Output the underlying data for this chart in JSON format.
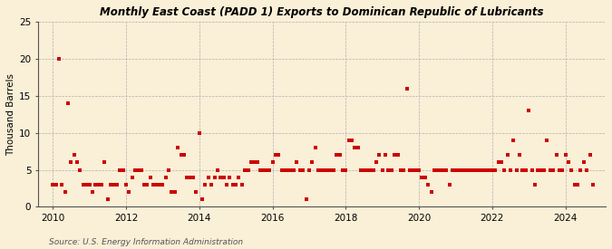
{
  "title": "Monthly East Coast (PADD 1) Exports to Dominican Republic of Lubricants",
  "ylabel": "Thousand Barrels",
  "source": "Source: U.S. Energy Information Administration",
  "background_color": "#faefd7",
  "plot_bg_color": "#faefd7",
  "marker_color": "#cc0000",
  "marker_size": 3.5,
  "ylim": [
    0,
    25
  ],
  "yticks": [
    0,
    5,
    10,
    15,
    20,
    25
  ],
  "xlim_start": 2009.6,
  "xlim_end": 2025.1,
  "xticks": [
    2010,
    2012,
    2014,
    2016,
    2018,
    2020,
    2022,
    2024
  ],
  "data": [
    [
      2010.0,
      3
    ],
    [
      2010.083,
      3
    ],
    [
      2010.167,
      20
    ],
    [
      2010.25,
      3
    ],
    [
      2010.333,
      2
    ],
    [
      2010.417,
      14
    ],
    [
      2010.5,
      6
    ],
    [
      2010.583,
      7
    ],
    [
      2010.667,
      6
    ],
    [
      2010.75,
      5
    ],
    [
      2010.833,
      3
    ],
    [
      2010.917,
      3
    ],
    [
      2011.0,
      3
    ],
    [
      2011.083,
      2
    ],
    [
      2011.167,
      3
    ],
    [
      2011.25,
      3
    ],
    [
      2011.333,
      3
    ],
    [
      2011.417,
      6
    ],
    [
      2011.5,
      1
    ],
    [
      2011.583,
      3
    ],
    [
      2011.667,
      3
    ],
    [
      2011.75,
      3
    ],
    [
      2011.833,
      5
    ],
    [
      2011.917,
      5
    ],
    [
      2012.0,
      3
    ],
    [
      2012.083,
      2
    ],
    [
      2012.167,
      4
    ],
    [
      2012.25,
      5
    ],
    [
      2012.333,
      5
    ],
    [
      2012.417,
      5
    ],
    [
      2012.5,
      3
    ],
    [
      2012.583,
      3
    ],
    [
      2012.667,
      4
    ],
    [
      2012.75,
      3
    ],
    [
      2012.833,
      3
    ],
    [
      2012.917,
      3
    ],
    [
      2013.0,
      3
    ],
    [
      2013.083,
      4
    ],
    [
      2013.167,
      5
    ],
    [
      2013.25,
      2
    ],
    [
      2013.333,
      2
    ],
    [
      2013.417,
      8
    ],
    [
      2013.5,
      7
    ],
    [
      2013.583,
      7
    ],
    [
      2013.667,
      4
    ],
    [
      2013.75,
      4
    ],
    [
      2013.833,
      4
    ],
    [
      2013.917,
      2
    ],
    [
      2014.0,
      10
    ],
    [
      2014.083,
      1
    ],
    [
      2014.167,
      3
    ],
    [
      2014.25,
      4
    ],
    [
      2014.333,
      3
    ],
    [
      2014.417,
      4
    ],
    [
      2014.5,
      5
    ],
    [
      2014.583,
      4
    ],
    [
      2014.667,
      4
    ],
    [
      2014.75,
      3
    ],
    [
      2014.833,
      4
    ],
    [
      2014.917,
      3
    ],
    [
      2015.0,
      3
    ],
    [
      2015.083,
      4
    ],
    [
      2015.167,
      3
    ],
    [
      2015.25,
      5
    ],
    [
      2015.333,
      5
    ],
    [
      2015.417,
      6
    ],
    [
      2015.5,
      6
    ],
    [
      2015.583,
      6
    ],
    [
      2015.667,
      5
    ],
    [
      2015.75,
      5
    ],
    [
      2015.833,
      5
    ],
    [
      2015.917,
      5
    ],
    [
      2016.0,
      6
    ],
    [
      2016.083,
      7
    ],
    [
      2016.167,
      7
    ],
    [
      2016.25,
      5
    ],
    [
      2016.333,
      5
    ],
    [
      2016.417,
      5
    ],
    [
      2016.5,
      5
    ],
    [
      2016.583,
      5
    ],
    [
      2016.667,
      6
    ],
    [
      2016.75,
      5
    ],
    [
      2016.833,
      5
    ],
    [
      2016.917,
      1
    ],
    [
      2017.0,
      5
    ],
    [
      2017.083,
      6
    ],
    [
      2017.167,
      8
    ],
    [
      2017.25,
      5
    ],
    [
      2017.333,
      5
    ],
    [
      2017.417,
      5
    ],
    [
      2017.5,
      5
    ],
    [
      2017.583,
      5
    ],
    [
      2017.667,
      5
    ],
    [
      2017.75,
      7
    ],
    [
      2017.833,
      7
    ],
    [
      2017.917,
      5
    ],
    [
      2018.0,
      5
    ],
    [
      2018.083,
      9
    ],
    [
      2018.167,
      9
    ],
    [
      2018.25,
      8
    ],
    [
      2018.333,
      8
    ],
    [
      2018.417,
      5
    ],
    [
      2018.5,
      5
    ],
    [
      2018.583,
      5
    ],
    [
      2018.667,
      5
    ],
    [
      2018.75,
      5
    ],
    [
      2018.833,
      6
    ],
    [
      2018.917,
      7
    ],
    [
      2019.0,
      5
    ],
    [
      2019.083,
      7
    ],
    [
      2019.167,
      5
    ],
    [
      2019.25,
      5
    ],
    [
      2019.333,
      7
    ],
    [
      2019.417,
      7
    ],
    [
      2019.5,
      5
    ],
    [
      2019.583,
      5
    ],
    [
      2019.667,
      16
    ],
    [
      2019.75,
      5
    ],
    [
      2019.833,
      5
    ],
    [
      2019.917,
      5
    ],
    [
      2020.0,
      5
    ],
    [
      2020.083,
      4
    ],
    [
      2020.167,
      4
    ],
    [
      2020.25,
      3
    ],
    [
      2020.333,
      2
    ],
    [
      2020.417,
      5
    ],
    [
      2020.5,
      5
    ],
    [
      2020.583,
      5
    ],
    [
      2020.667,
      5
    ],
    [
      2020.75,
      5
    ],
    [
      2020.833,
      3
    ],
    [
      2020.917,
      5
    ],
    [
      2021.0,
      5
    ],
    [
      2021.083,
      5
    ],
    [
      2021.167,
      5
    ],
    [
      2021.25,
      5
    ],
    [
      2021.333,
      5
    ],
    [
      2021.417,
      5
    ],
    [
      2021.5,
      5
    ],
    [
      2021.583,
      5
    ],
    [
      2021.667,
      5
    ],
    [
      2021.75,
      5
    ],
    [
      2021.833,
      5
    ],
    [
      2021.917,
      5
    ],
    [
      2022.0,
      5
    ],
    [
      2022.083,
      5
    ],
    [
      2022.167,
      6
    ],
    [
      2022.25,
      6
    ],
    [
      2022.333,
      5
    ],
    [
      2022.417,
      7
    ],
    [
      2022.5,
      5
    ],
    [
      2022.583,
      9
    ],
    [
      2022.667,
      5
    ],
    [
      2022.75,
      7
    ],
    [
      2022.833,
      5
    ],
    [
      2022.917,
      5
    ],
    [
      2023.0,
      13
    ],
    [
      2023.083,
      5
    ],
    [
      2023.167,
      3
    ],
    [
      2023.25,
      5
    ],
    [
      2023.333,
      5
    ],
    [
      2023.417,
      5
    ],
    [
      2023.5,
      9
    ],
    [
      2023.583,
      5
    ],
    [
      2023.667,
      5
    ],
    [
      2023.75,
      7
    ],
    [
      2023.833,
      5
    ],
    [
      2023.917,
      5
    ],
    [
      2024.0,
      7
    ],
    [
      2024.083,
      6
    ],
    [
      2024.167,
      5
    ],
    [
      2024.25,
      3
    ],
    [
      2024.333,
      3
    ],
    [
      2024.417,
      5
    ],
    [
      2024.5,
      6
    ],
    [
      2024.583,
      5
    ],
    [
      2024.667,
      7
    ],
    [
      2024.75,
      3
    ]
  ]
}
